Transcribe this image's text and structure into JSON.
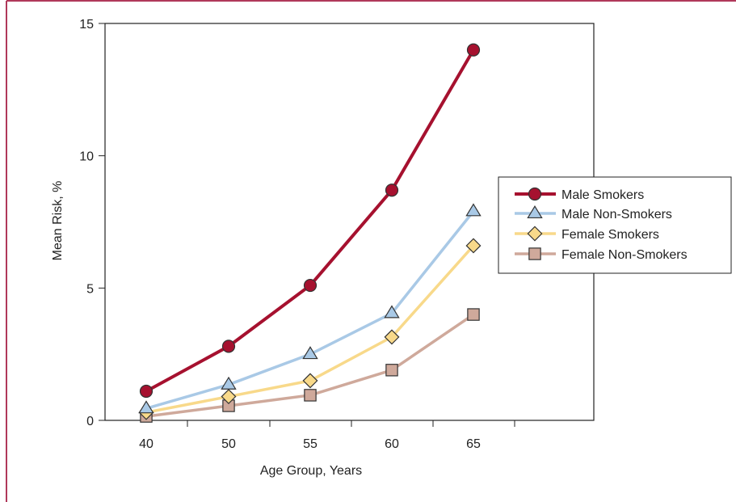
{
  "chart_data": {
    "type": "line",
    "title": "",
    "xlabel": "Age Group, Years",
    "ylabel": "Mean Risk, %",
    "categories": [
      "40",
      "50",
      "55",
      "60",
      "65"
    ],
    "ylim": [
      0,
      15
    ],
    "yticks": [
      0,
      5,
      10,
      15
    ],
    "grid": false,
    "legend_position": "right",
    "series": [
      {
        "name": "Male Smokers",
        "values": [
          1.1,
          2.8,
          5.1,
          8.7,
          14.0
        ],
        "color": "#a6112f",
        "marker": "circle"
      },
      {
        "name": "Male Non-Smokers",
        "values": [
          0.45,
          1.35,
          2.5,
          4.05,
          7.9
        ],
        "color": "#a9c9e6",
        "marker": "triangle"
      },
      {
        "name": "Female Smokers",
        "values": [
          0.3,
          0.9,
          1.5,
          3.15,
          6.6
        ],
        "color": "#f8d98a",
        "marker": "diamond"
      },
      {
        "name": "Female Non-Smokers",
        "values": [
          0.15,
          0.55,
          0.95,
          1.9,
          4.0
        ],
        "color": "#cfa99b",
        "marker": "square"
      }
    ]
  },
  "colors": {
    "frame": "#b0385a",
    "axis": "#222222"
  }
}
